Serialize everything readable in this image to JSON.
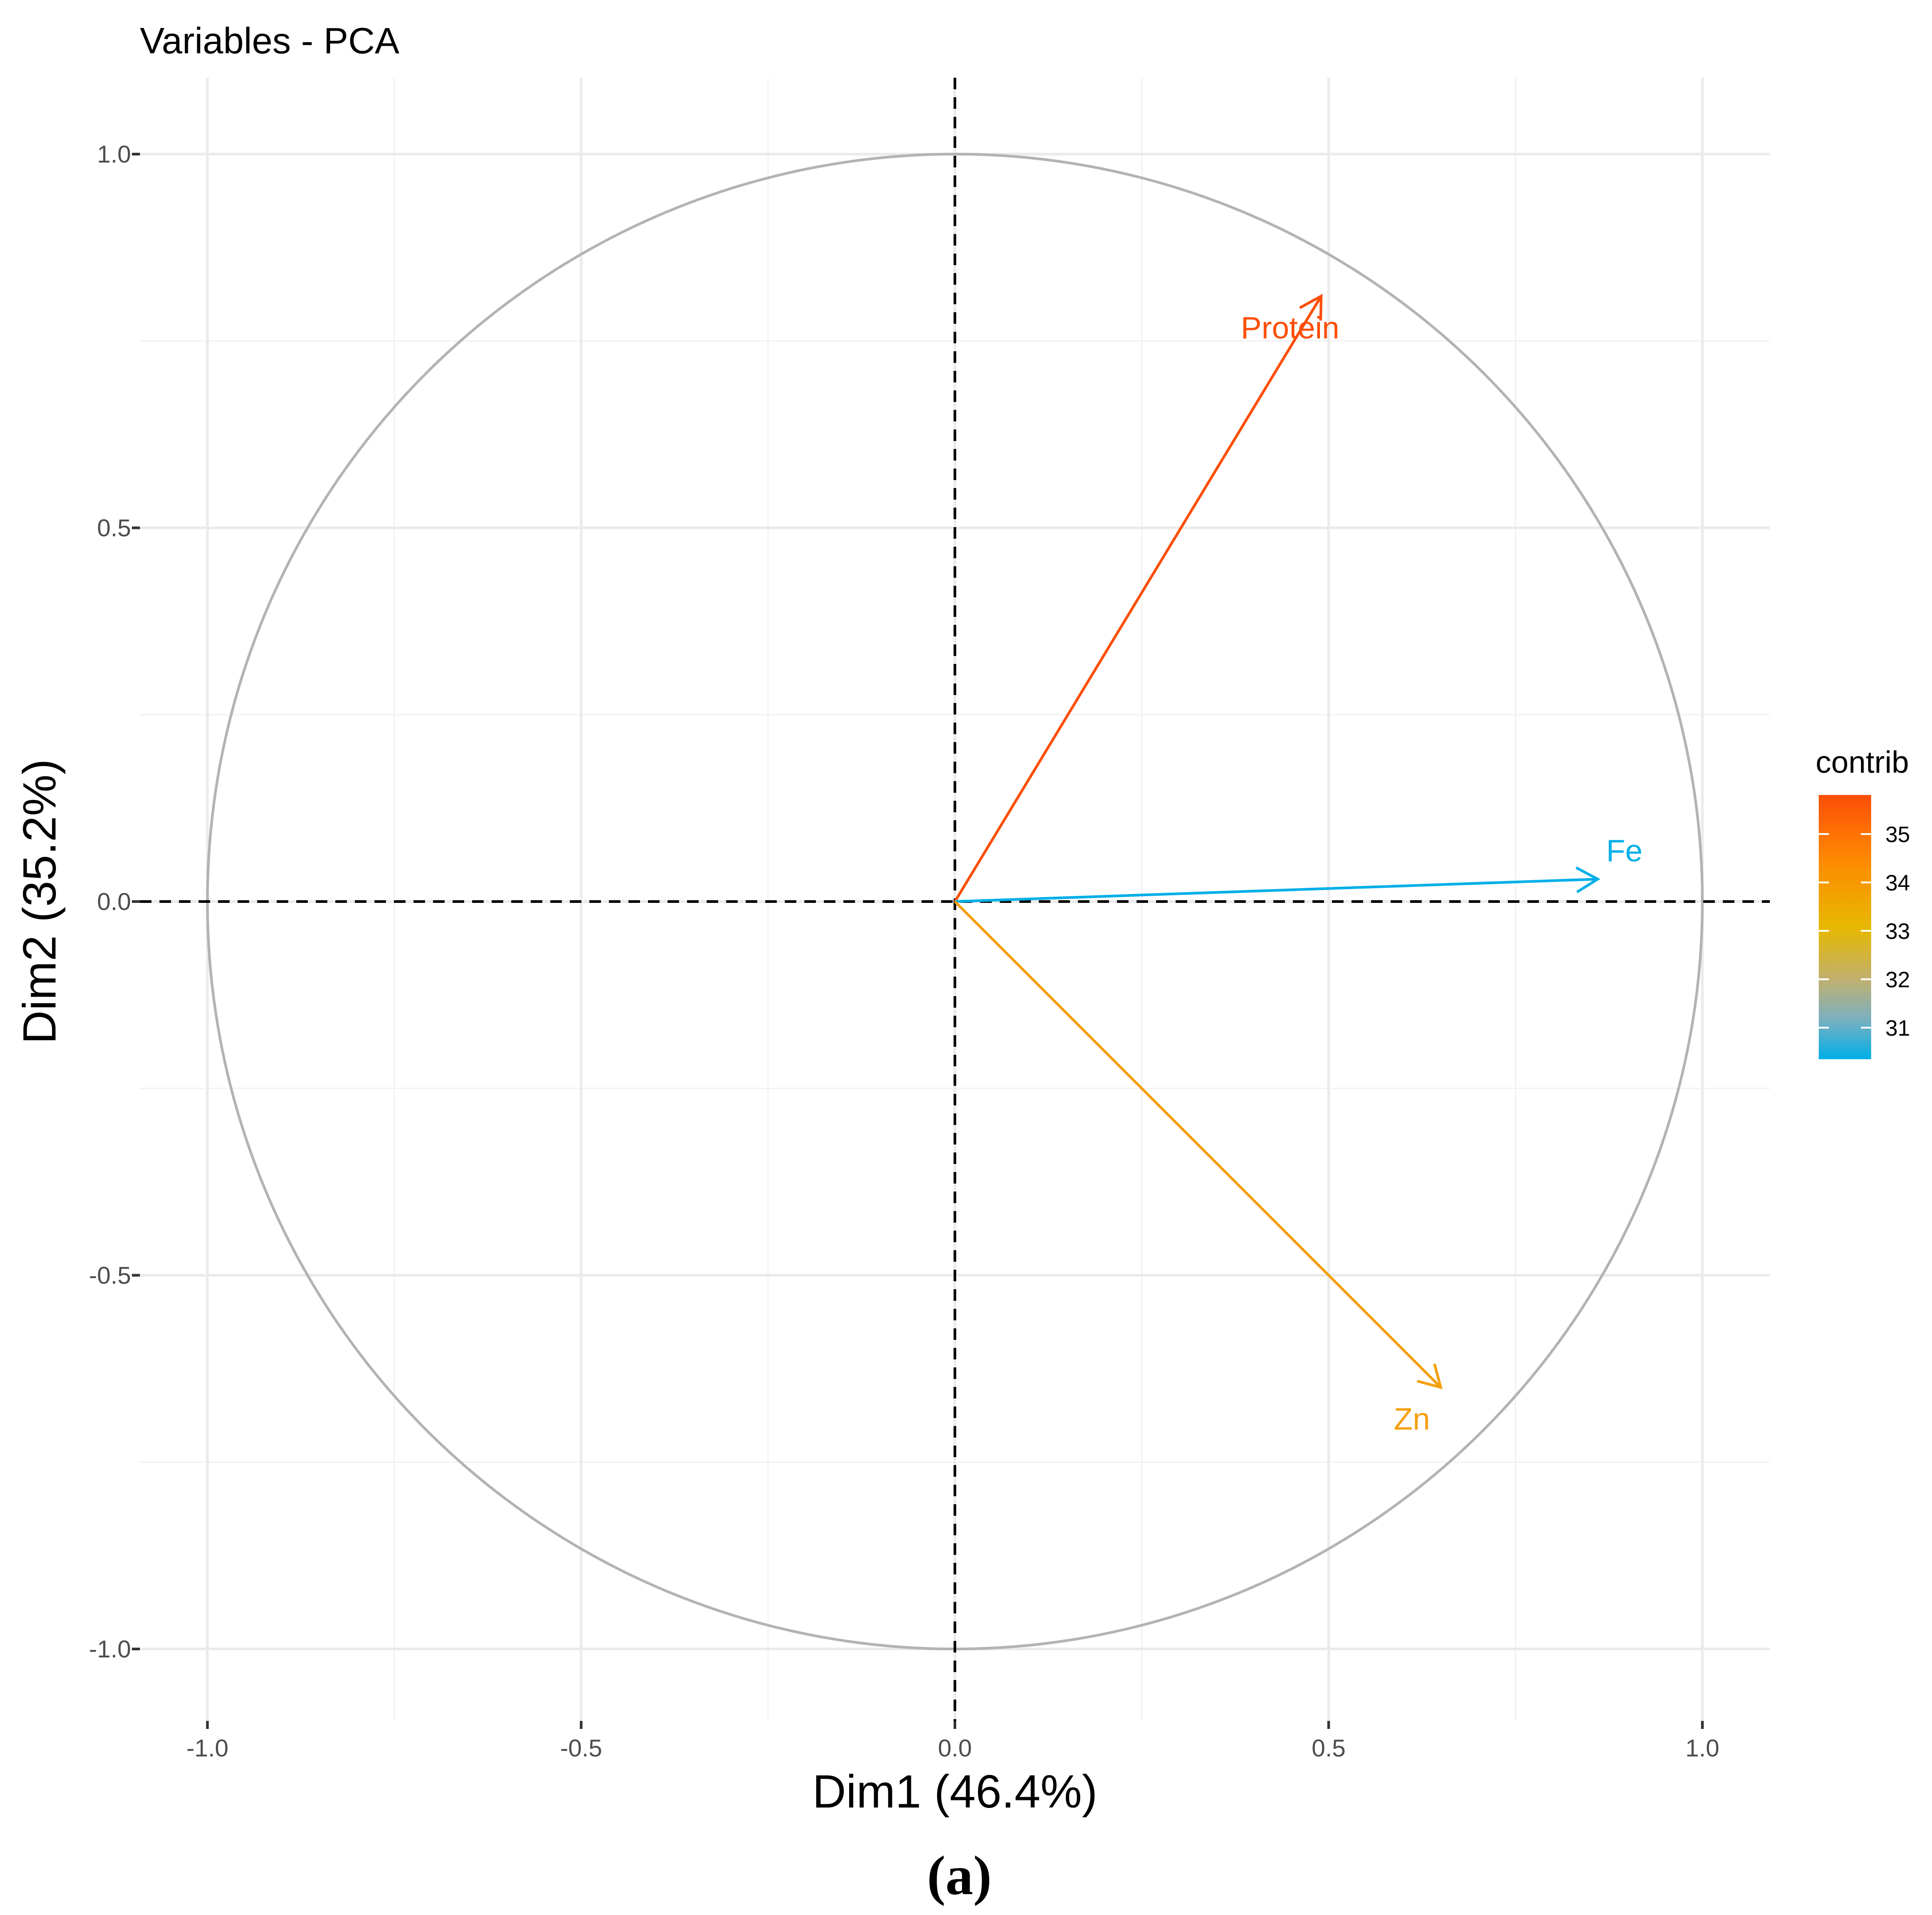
{
  "chart_data": {
    "type": "scatter",
    "title": "Variables - PCA",
    "xlabel": "Dim1 (46.4%)",
    "ylabel": "Dim2 (35.2%)",
    "xlim": [
      -1.0,
      1.0
    ],
    "ylim": [
      -1.0,
      1.0
    ],
    "x_ticks": [
      "-1.0",
      "-0.5",
      "0.0",
      "0.5",
      "1.0"
    ],
    "y_ticks": [
      "1.0",
      "0.5",
      "0.0",
      "-0.5",
      "-1.0"
    ],
    "grid": true,
    "correlation_circle": true,
    "variables": [
      {
        "name": "Protein",
        "x": 0.49,
        "y": 0.81,
        "contrib": 35.8,
        "color": "#fc4e08"
      },
      {
        "name": "Fe",
        "x": 0.86,
        "y": 0.03,
        "contrib": 30.5,
        "color": "#00afe8"
      },
      {
        "name": "Zn",
        "x": 0.65,
        "y": -0.65,
        "contrib": 33.7,
        "color": "#f5a00f"
      }
    ],
    "legend": {
      "title": "contrib",
      "placement": "right",
      "ticks": [
        "35",
        "34",
        "33",
        "32",
        "31"
      ],
      "gradient_colors": [
        "#fc4e08",
        "#ff8a00",
        "#e7b800",
        "#c0b070",
        "#7ab0c0",
        "#00afe8"
      ]
    }
  },
  "caption": "(a)"
}
